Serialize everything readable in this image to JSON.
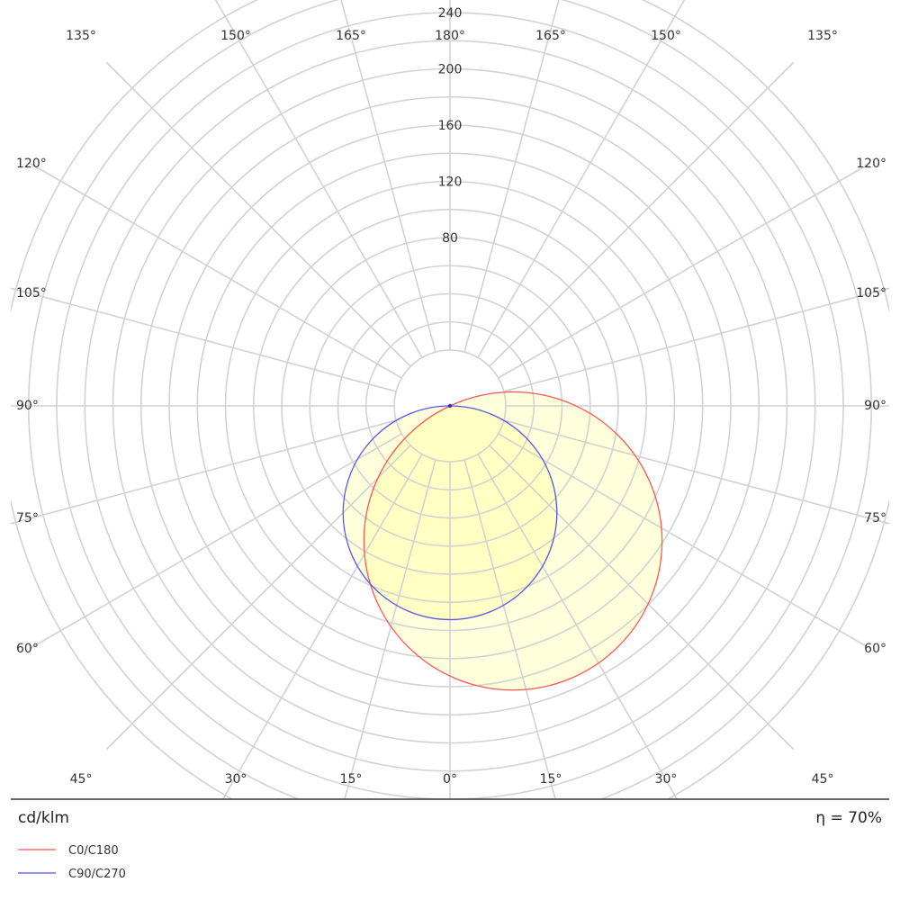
{
  "chart_data": {
    "type": "polar",
    "radial_unit": "cd/klm",
    "radial_ticks": [
      80,
      120,
      160,
      200,
      240
    ],
    "rmax": 280,
    "angle_labels": {
      "bottom": [
        "45°",
        "30°",
        "15°",
        "0°",
        "15°",
        "30°",
        "45°"
      ],
      "top": [
        "135°",
        "150°",
        "165°",
        "180°",
        "165°",
        "150°",
        "135°"
      ],
      "left": [
        "120°",
        "105°",
        "90°",
        "75°",
        "60°"
      ],
      "right": [
        "120°",
        "105°",
        "90°",
        "75°",
        "60°"
      ]
    },
    "efficiency_label": "η = 70%",
    "series": [
      {
        "name": "C0/C180",
        "color": "#ff5555",
        "circle": {
          "angle_deg": 25,
          "diameter": 212
        }
      },
      {
        "name": "C90/C270",
        "color": "#5555ee",
        "circle": {
          "angle_deg": 0,
          "diameter": 152
        }
      }
    ],
    "fill_color": "#ffff99"
  }
}
